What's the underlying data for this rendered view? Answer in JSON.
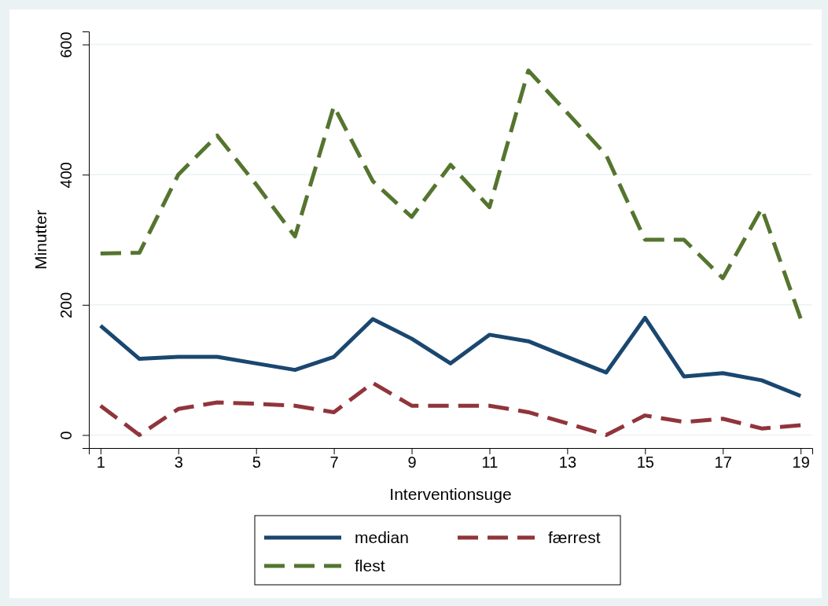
{
  "chart_data": {
    "type": "line",
    "xlabel": "Interventionsuge",
    "ylabel": "Minutter",
    "x": [
      1,
      2,
      3,
      4,
      5,
      6,
      7,
      8,
      9,
      10,
      11,
      12,
      13,
      14,
      15,
      16,
      17,
      18,
      19
    ],
    "xlim": [
      0.7,
      19.3
    ],
    "xticks": [
      1,
      3,
      5,
      7,
      9,
      11,
      13,
      15,
      17,
      19
    ],
    "ylim": [
      -20,
      620
    ],
    "yticks": [
      0,
      200,
      400,
      600
    ],
    "grid": "y",
    "legend": "bottom",
    "marker": "none",
    "series": [
      {
        "name": "median",
        "color": "#1a476f",
        "line_style": "solid",
        "values": [
          168,
          117,
          120,
          120,
          110,
          100,
          120,
          178,
          148,
          110,
          154,
          144,
          120,
          96,
          180,
          90,
          95,
          84,
          60
        ]
      },
      {
        "name": "færrest",
        "color": "#90353b",
        "line_style": "dashed",
        "values": [
          45,
          0,
          40,
          50,
          48,
          45,
          35,
          80,
          45,
          45,
          45,
          35,
          18,
          0,
          30,
          20,
          25,
          10,
          15
        ]
      },
      {
        "name": "flest",
        "color": "#55752f",
        "line_style": "dashed",
        "values": [
          279,
          280,
          400,
          460,
          385,
          305,
          505,
          390,
          335,
          415,
          350,
          560,
          495,
          430,
          300,
          300,
          241,
          348,
          179
        ]
      }
    ]
  }
}
